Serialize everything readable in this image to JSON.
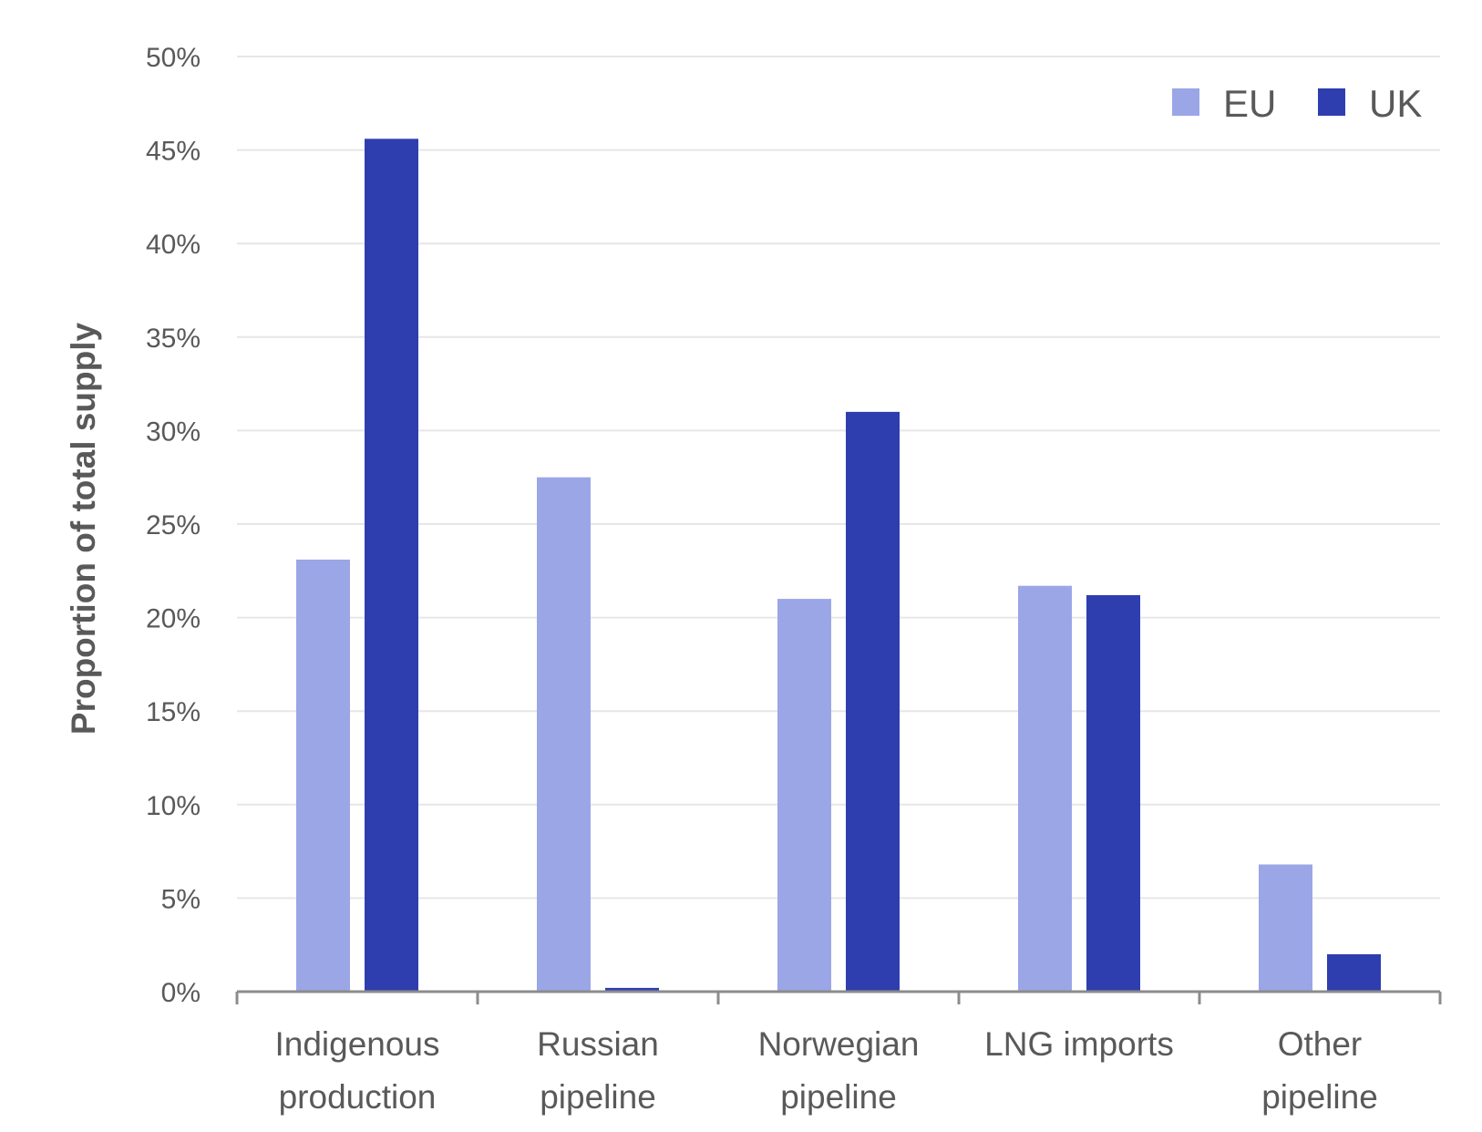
{
  "chart_data": {
    "type": "bar",
    "categories": [
      [
        "Indigenous",
        "production"
      ],
      [
        "Russian",
        "pipeline"
      ],
      [
        "Norwegian",
        "pipeline"
      ],
      [
        "LNG imports"
      ],
      [
        "Other",
        "pipeline"
      ]
    ],
    "series": [
      {
        "name": "EU",
        "values": [
          23.1,
          27.5,
          21.0,
          21.7,
          6.8
        ],
        "color": "#9ba6e6"
      },
      {
        "name": "UK",
        "values": [
          45.6,
          0.2,
          31.0,
          21.2,
          2.0
        ],
        "color": "#2e3eaf"
      }
    ],
    "ylabel": "Proportion of total supply",
    "ylim": [
      0,
      50
    ],
    "ytick_step": 5,
    "ytick_format": "{v}%",
    "grid": true,
    "legend_position": "top-right"
  }
}
